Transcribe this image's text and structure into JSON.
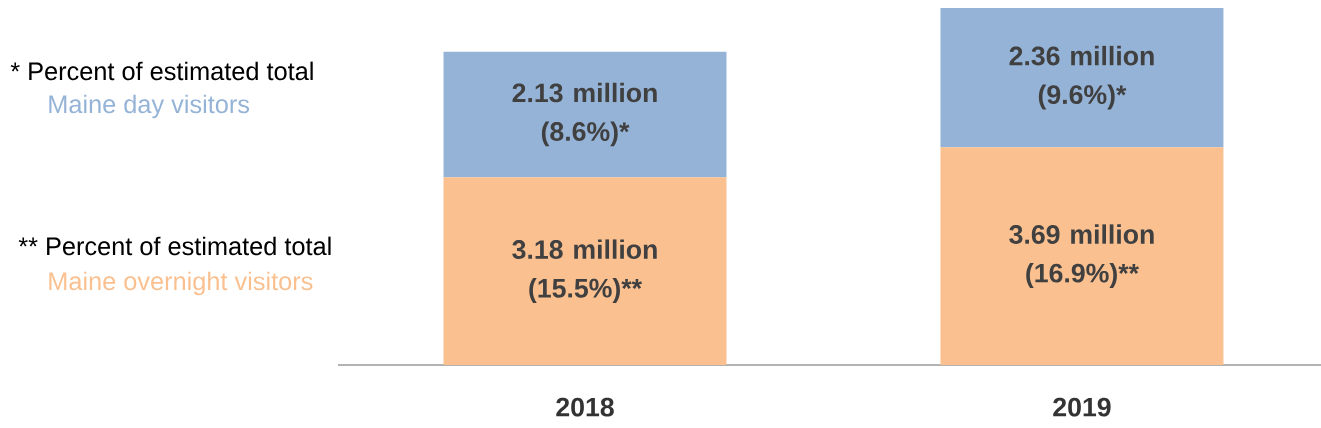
{
  "chart_data": {
    "type": "bar",
    "stacked": true,
    "legend": "left",
    "categories": [
      "2018",
      "2019"
    ],
    "series": [
      {
        "name": "Maine overnight visitors",
        "color": "#fac090",
        "values": [
          3180000,
          3690000
        ],
        "value_labels": [
          "3.18 million (15.5%)**",
          "3.69 million (16.9%)**"
        ]
      },
      {
        "name": "Maine day visitors",
        "color": "#95b3d7",
        "values": [
          2130000,
          2360000
        ],
        "value_labels": [
          "2.13 million (8.6%)*",
          "2.36 million (9.6%)*"
        ]
      }
    ],
    "annotations": [
      "* Percent of estimated total",
      "** Percent of estimated total"
    ]
  }
}
